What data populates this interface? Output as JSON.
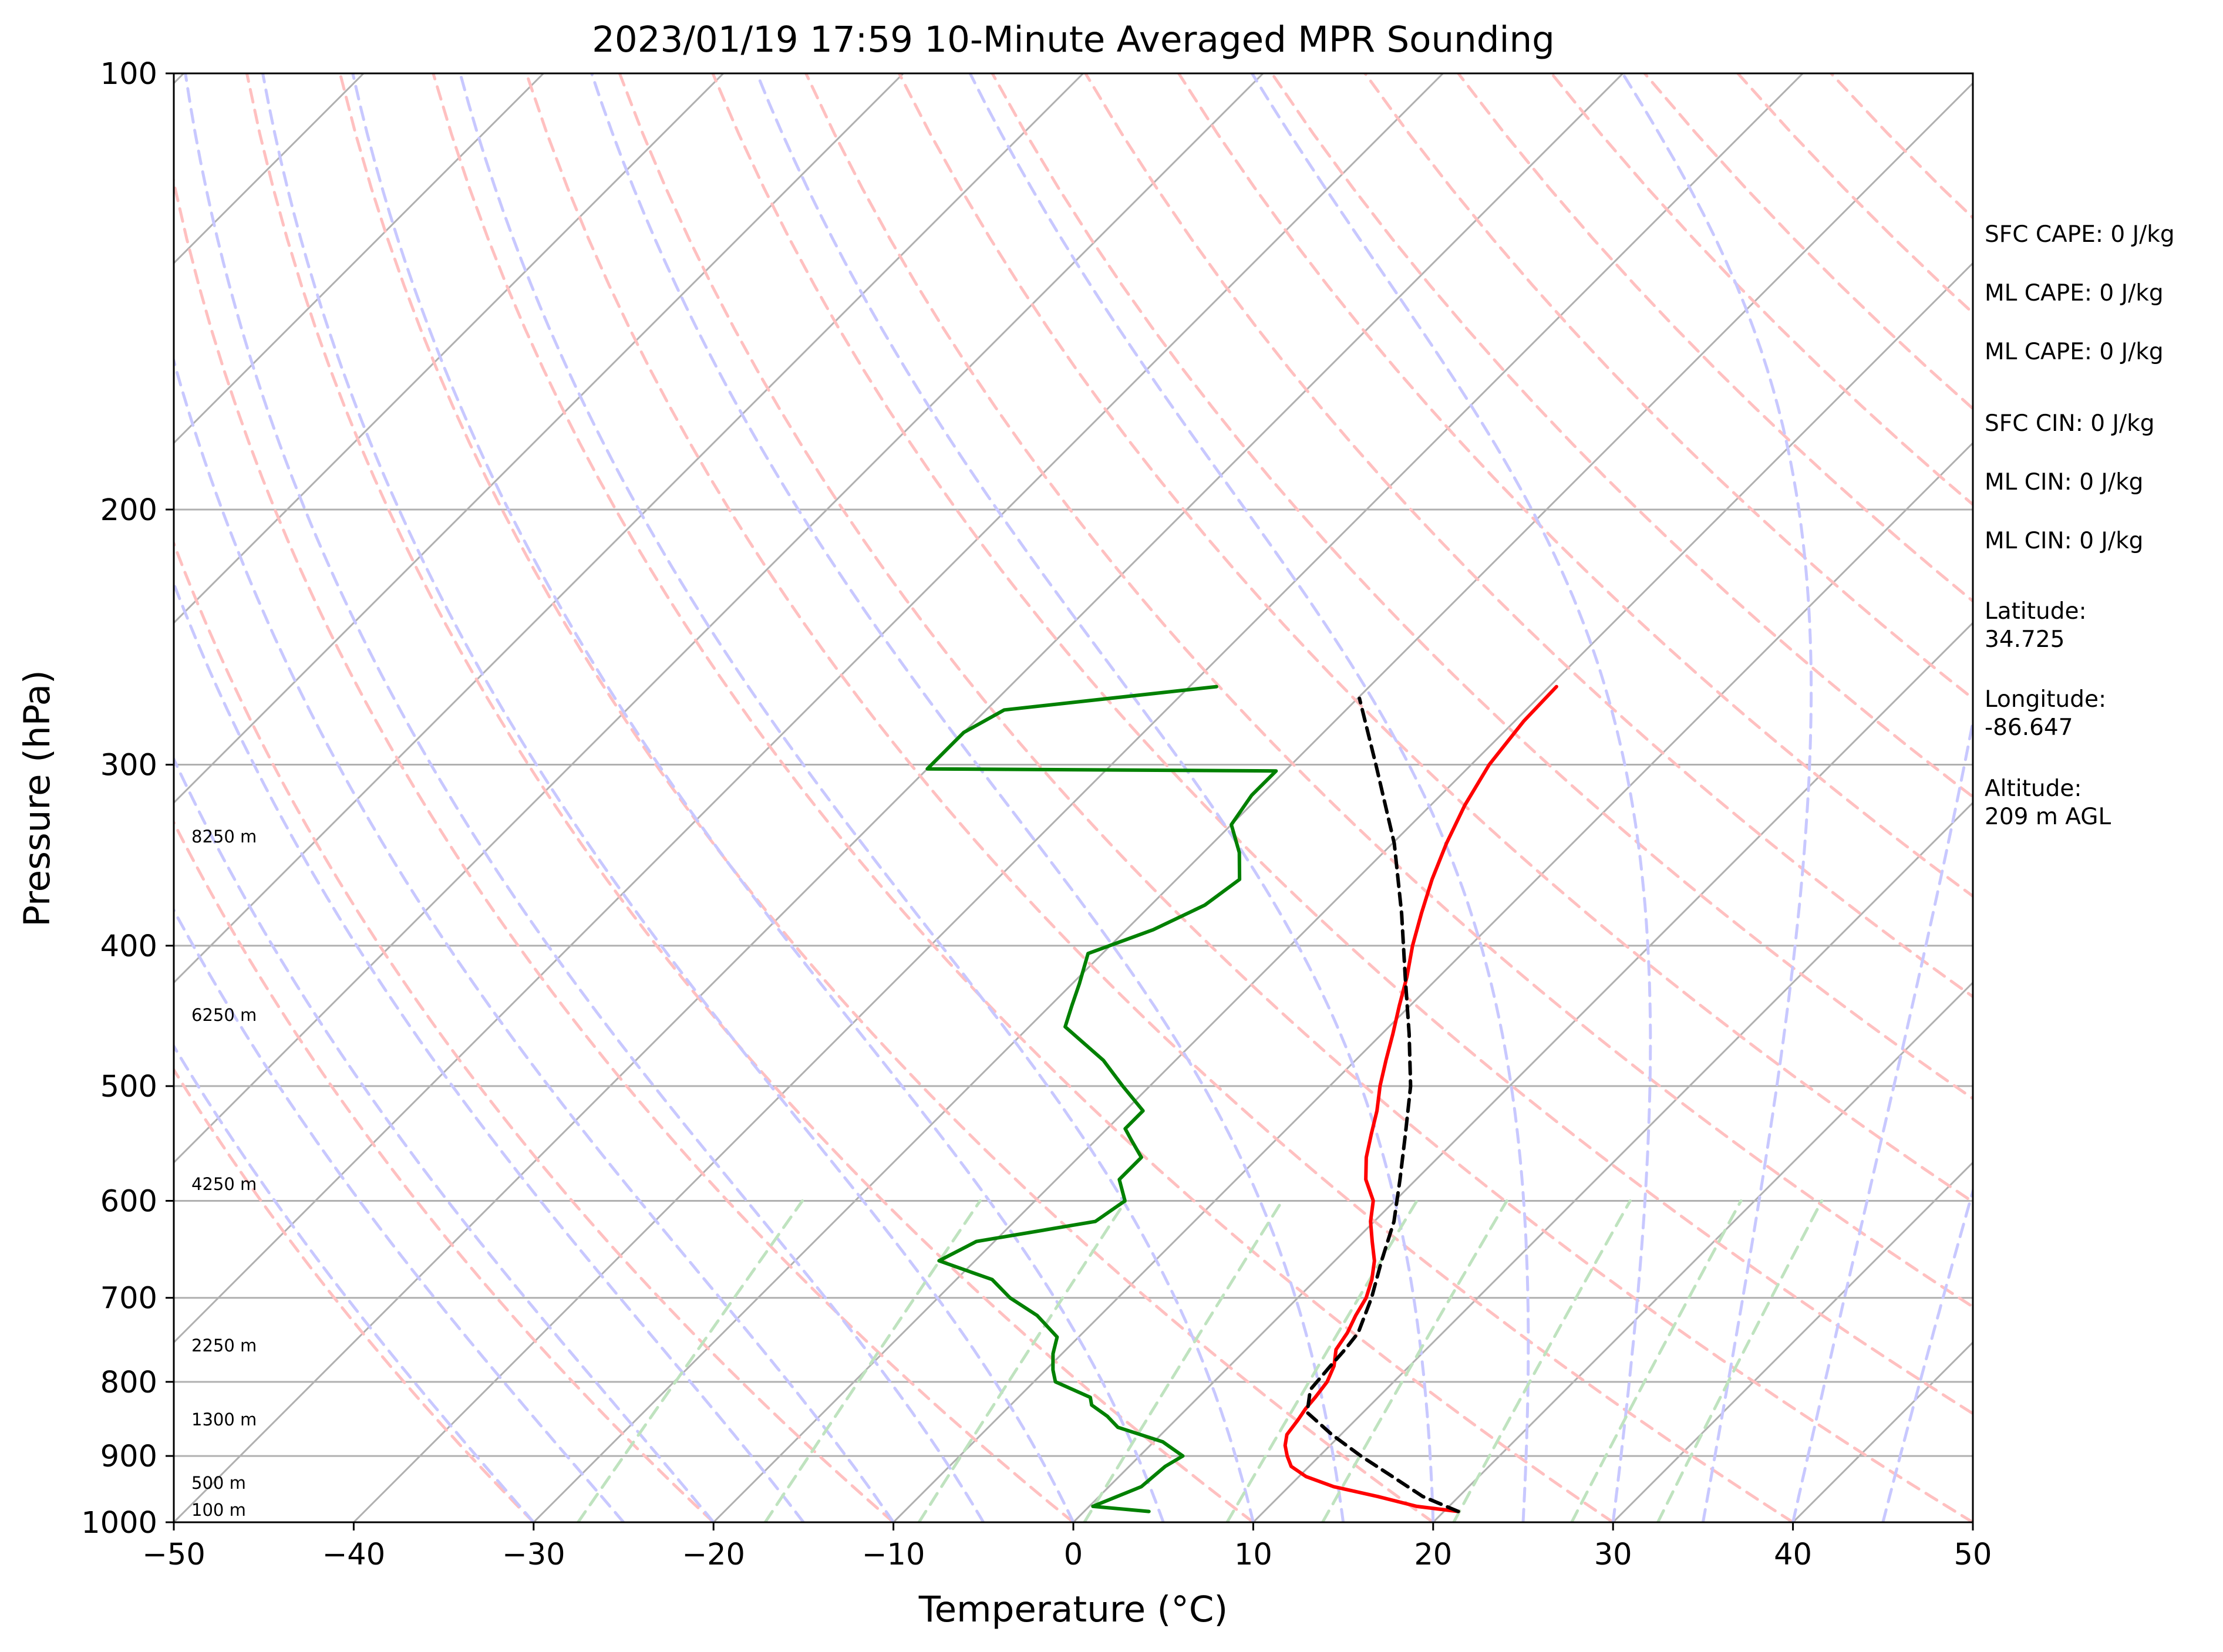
{
  "chart_data": {
    "type": "line",
    "title": "2023/01/19 17:59 10-Minute Averaged MPR Sounding",
    "xlabel": "Temperature (°C)",
    "ylabel": "Pressure (hPa)",
    "xlim": [
      -50,
      50
    ],
    "ylim": [
      1000,
      100
    ],
    "yscale": "log",
    "x_ticks": [
      "−50",
      "−40",
      "−30",
      "−20",
      "−10",
      "0",
      "10",
      "20",
      "30",
      "40",
      "50"
    ],
    "y_ticks": [
      "100",
      "200",
      "300",
      "400",
      "500",
      "600",
      "700",
      "800",
      "900",
      "1000"
    ],
    "grid": true,
    "series": [
      {
        "color": "#ff0000",
        "pressure": [
          983,
          975,
          960,
          945,
          930,
          915,
          900,
          885,
          870,
          850,
          835,
          820,
          800,
          780,
          760,
          740,
          720,
          700,
          680,
          660,
          640,
          620,
          600,
          580,
          560,
          540,
          520,
          500,
          480,
          460,
          440,
          420,
          400,
          380,
          360,
          340,
          320,
          300,
          280,
          265
        ],
        "temperature": [
          20.8,
          18.2,
          15.5,
          12.5,
          10.4,
          9.0,
          8.2,
          7.5,
          7.0,
          6.8,
          6.6,
          6.5,
          6.3,
          5.8,
          5.0,
          4.7,
          4.2,
          3.8,
          3.1,
          2.2,
          1.0,
          -0.2,
          -1.2,
          -2.8,
          -4.0,
          -5.0,
          -6.0,
          -7.2,
          -8.3,
          -9.4,
          -10.6,
          -11.8,
          -13.2,
          -14.5,
          -15.8,
          -17.0,
          -18.1,
          -19.0,
          -19.5,
          -19.6
        ]
      },
      {
        "color": "#008000",
        "pressure": [
          983,
          975,
          960,
          945,
          930,
          915,
          900,
          880,
          860,
          845,
          830,
          820,
          800,
          785,
          765,
          745,
          720,
          700,
          680,
          660,
          640,
          620,
          600,
          580,
          560,
          545,
          535,
          520,
          500,
          480,
          455,
          440,
          425,
          405,
          390,
          375,
          360,
          345,
          330,
          315,
          303,
          302,
          285,
          275,
          265
        ],
        "dewpoint": [
          3.6,
          0.2,
          1.0,
          1.8,
          1.9,
          2.0,
          2.4,
          0.5,
          -2.8,
          -4.0,
          -5.5,
          -6.0,
          -8.8,
          -9.6,
          -10.5,
          -11.2,
          -13.5,
          -16.0,
          -18.0,
          -22.0,
          -21.0,
          -15.5,
          -15.0,
          -16.5,
          -16.5,
          -18.0,
          -19.0,
          -19.0,
          -21.5,
          -24.0,
          -28.0,
          -28.8,
          -29.6,
          -30.8,
          -28.5,
          -27.0,
          -26.5,
          -28.0,
          -30.0,
          -30.5,
          -30.5,
          -50.0,
          -50.0,
          -49.0,
          -38.5
        ]
      },
      {
        "color": "#000000",
        "pressure": [
          983,
          960,
          930,
          900,
          870,
          840,
          810,
          780,
          760,
          740,
          700,
          660,
          620,
          580,
          540,
          500,
          460,
          420,
          380,
          340,
          300,
          270
        ],
        "parcel_temperature": [
          20.8,
          18.0,
          15.2,
          12.3,
          9.5,
          6.9,
          5.8,
          5.6,
          5.5,
          5.3,
          4.1,
          2.6,
          1.1,
          -0.9,
          -3.1,
          -5.5,
          -8.5,
          -11.9,
          -15.6,
          -19.9,
          -25.3,
          -29.9
        ]
      }
    ],
    "height_labels": [
      "100 m",
      "500 m",
      "1300 m",
      "2250 m",
      "4250 m",
      "6250 m",
      "8250 m"
    ],
    "side_info": [
      "SFC CAPE: 0 J/kg",
      "ML CAPE: 0 J/kg",
      "ML CAPE: 0 J/kg",
      "SFC CIN: 0 J/kg",
      "ML CIN: 0 J/kg",
      "ML CIN: 0 J/kg",
      "Latitude:",
      "34.725",
      "Longitude:",
      "-86.647",
      "Altitude:",
      "209 m AGL"
    ],
    "colors": {
      "isotherm": "#b0b0b0",
      "dry_adiabat": "#ffc0c0",
      "moist_adiabat": "#c8c8ff",
      "mixing_ratio": "#bfe3bf"
    }
  }
}
